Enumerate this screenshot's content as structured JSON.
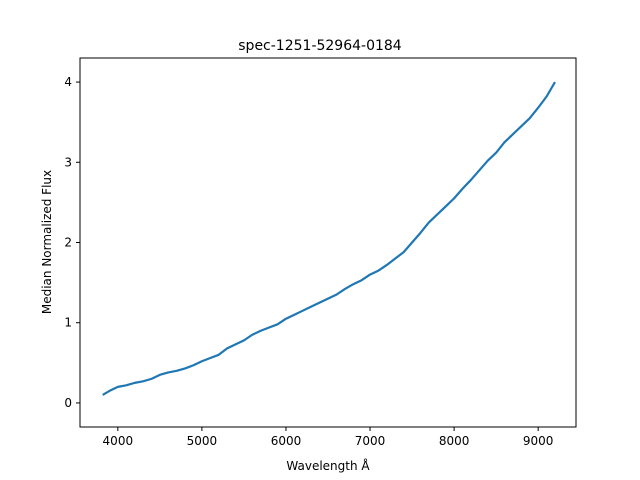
{
  "chart_data": {
    "type": "line",
    "title": "spec-1251-52964-0184",
    "xlabel": "Wavelength Å",
    "ylabel": "Median Normalized Flux",
    "xlim": [
      3550,
      9450
    ],
    "ylim": [
      -0.3,
      4.3
    ],
    "xticks": [
      4000,
      5000,
      6000,
      7000,
      8000,
      9000
    ],
    "yticks": [
      0,
      1,
      2,
      3,
      4
    ],
    "grid": false,
    "series": [
      {
        "color": "#1f77b4",
        "x": [
          3820,
          3900,
          4000,
          4100,
          4200,
          4300,
          4400,
          4500,
          4600,
          4700,
          4800,
          4900,
          5000,
          5100,
          5200,
          5300,
          5400,
          5500,
          5600,
          5700,
          5800,
          5900,
          6000,
          6100,
          6200,
          6300,
          6400,
          6500,
          6600,
          6700,
          6800,
          6900,
          7000,
          7100,
          7200,
          7300,
          7400,
          7500,
          7600,
          7700,
          7800,
          7900,
          8000,
          8100,
          8200,
          8300,
          8400,
          8500,
          8600,
          8700,
          8800,
          8900,
          9000,
          9100,
          9200
        ],
        "y": [
          0.1,
          0.15,
          0.2,
          0.22,
          0.25,
          0.27,
          0.3,
          0.35,
          0.38,
          0.4,
          0.43,
          0.47,
          0.52,
          0.56,
          0.6,
          0.68,
          0.73,
          0.78,
          0.85,
          0.9,
          0.94,
          0.98,
          1.05,
          1.1,
          1.15,
          1.2,
          1.25,
          1.3,
          1.35,
          1.42,
          1.48,
          1.53,
          1.6,
          1.65,
          1.72,
          1.8,
          1.88,
          2.0,
          2.12,
          2.25,
          2.35,
          2.45,
          2.55,
          2.67,
          2.78,
          2.9,
          3.02,
          3.12,
          3.25,
          3.35,
          3.45,
          3.55,
          3.68,
          3.82,
          4.0
        ]
      }
    ]
  }
}
